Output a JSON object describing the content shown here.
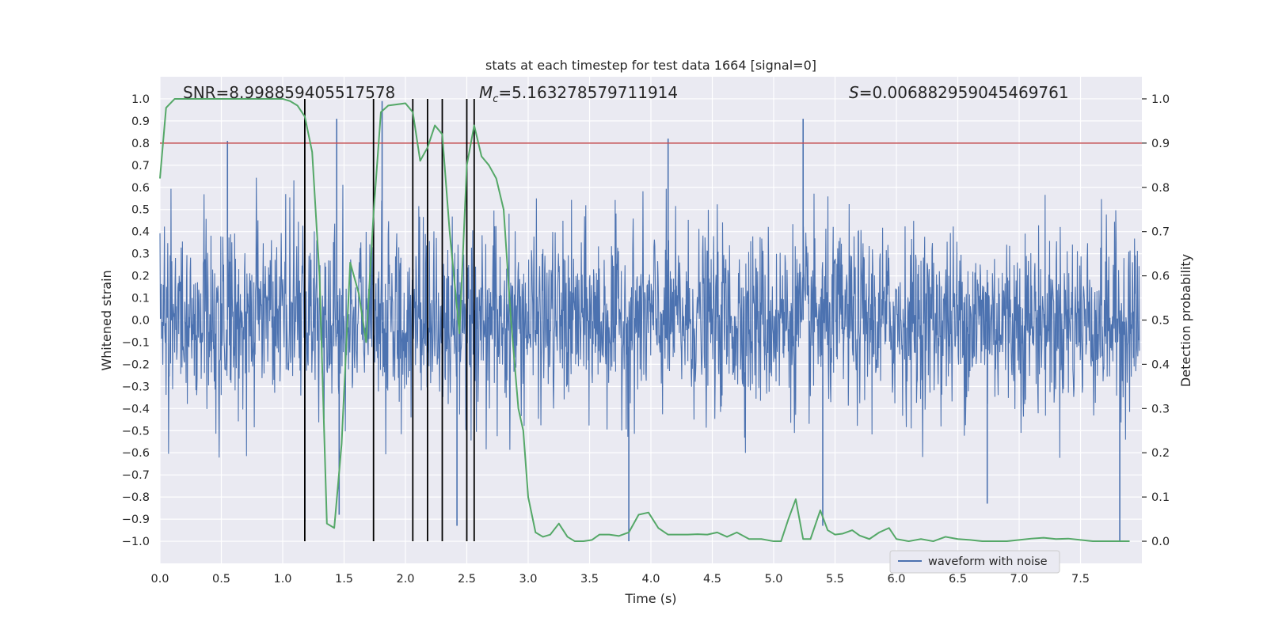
{
  "chart_data": {
    "type": "line",
    "title": "stats at each timestep for test data 1664 [signal=0]",
    "xlabel": "Time (s)",
    "ylabel_left": "Whitened strain",
    "ylabel_right": "Detection probability",
    "xlim": [
      0.0,
      8.0
    ],
    "ylim_left": [
      -1.1,
      1.1
    ],
    "ylim_right": [
      -0.05,
      1.05
    ],
    "grid": true,
    "x_ticks": [
      "0.0",
      "0.5",
      "1.0",
      "1.5",
      "2.0",
      "2.5",
      "3.0",
      "3.5",
      "4.0",
      "4.5",
      "5.0",
      "5.5",
      "6.0",
      "6.5",
      "7.0",
      "7.5"
    ],
    "y_left_ticks": [
      "1.0",
      "0.9",
      "0.8",
      "0.7",
      "0.6",
      "0.5",
      "0.4",
      "0.3",
      "0.2",
      "0.1",
      "0.0",
      "−0.1",
      "−0.2",
      "−0.3",
      "−0.4",
      "−0.5",
      "−0.6",
      "−0.7",
      "−0.8",
      "−0.9",
      "−1.0"
    ],
    "y_right_ticks": [
      "1.0",
      "0.9",
      "0.8",
      "0.7",
      "0.6",
      "0.5",
      "0.4",
      "0.3",
      "0.2",
      "0.1",
      "0.0"
    ],
    "annotations": {
      "snr": "SNR=8.998859405517578",
      "mc_symbol": "M",
      "mc_sub": "c",
      "mc_value": "=5.163278579711914",
      "s_symbol": "S",
      "s_value": "=0.006882959045469761"
    },
    "threshold": {
      "value": 0.8,
      "axis": "left",
      "color": "#c44e52"
    },
    "vertical_lines_x": [
      1.18,
      1.74,
      2.06,
      2.18,
      2.3,
      2.5,
      2.56
    ],
    "vertical_lines_range_left": [
      -1.0,
      1.0
    ],
    "waveform": {
      "name": "waveform with noise",
      "color": "#4c72b0",
      "typical_amplitude": 0.6,
      "tall_spikes": [
        {
          "x": 0.55,
          "y": 0.81
        },
        {
          "x": 1.18,
          "y": -0.91
        },
        {
          "x": 1.44,
          "y": 0.91
        },
        {
          "x": 1.46,
          "y": -0.88
        },
        {
          "x": 1.81,
          "y": 0.99
        },
        {
          "x": 2.42,
          "y": -0.93
        },
        {
          "x": 3.82,
          "y": -1.0
        },
        {
          "x": 4.14,
          "y": 0.82
        },
        {
          "x": 5.24,
          "y": 0.91
        },
        {
          "x": 5.4,
          "y": -0.93
        },
        {
          "x": 6.74,
          "y": -0.83
        },
        {
          "x": 7.82,
          "y": -1.0
        }
      ]
    },
    "series": [
      {
        "name": "detection probability",
        "axis": "right",
        "color": "#55a868",
        "x": [
          0.0,
          0.05,
          0.12,
          0.2,
          0.3,
          0.5,
          0.7,
          0.9,
          1.0,
          1.06,
          1.12,
          1.18,
          1.24,
          1.3,
          1.36,
          1.42,
          1.48,
          1.55,
          1.62,
          1.68,
          1.74,
          1.8,
          1.86,
          2.0,
          2.06,
          2.12,
          2.18,
          2.24,
          2.3,
          2.36,
          2.44,
          2.5,
          2.56,
          2.62,
          2.68,
          2.74,
          2.8,
          2.86,
          2.92,
          2.96,
          3.0,
          3.06,
          3.12,
          3.18,
          3.25,
          3.32,
          3.38,
          3.45,
          3.52,
          3.58,
          3.66,
          3.74,
          3.82,
          3.9,
          3.98,
          4.06,
          4.14,
          4.22,
          4.3,
          4.38,
          4.46,
          4.54,
          4.62,
          4.7,
          4.8,
          4.9,
          5.0,
          5.06,
          5.12,
          5.18,
          5.24,
          5.3,
          5.38,
          5.44,
          5.5,
          5.56,
          5.64,
          5.7,
          5.78,
          5.86,
          5.94,
          6.0,
          6.1,
          6.2,
          6.3,
          6.4,
          6.5,
          6.6,
          6.7,
          6.8,
          6.9,
          7.0,
          7.1,
          7.2,
          7.3,
          7.4,
          7.5,
          7.6,
          7.7,
          7.8,
          7.9
        ],
        "values": [
          0.82,
          0.98,
          1.0,
          1.0,
          1.0,
          1.0,
          1.0,
          1.0,
          1.0,
          0.995,
          0.985,
          0.96,
          0.88,
          0.6,
          0.04,
          0.03,
          0.22,
          0.63,
          0.56,
          0.45,
          0.74,
          0.97,
          0.985,
          0.99,
          0.97,
          0.86,
          0.89,
          0.94,
          0.92,
          0.7,
          0.47,
          0.85,
          0.94,
          0.87,
          0.85,
          0.82,
          0.75,
          0.5,
          0.3,
          0.25,
          0.1,
          0.02,
          0.01,
          0.015,
          0.04,
          0.01,
          0.0,
          0.0,
          0.003,
          0.015,
          0.015,
          0.012,
          0.02,
          0.06,
          0.065,
          0.03,
          0.015,
          0.015,
          0.015,
          0.016,
          0.015,
          0.02,
          0.01,
          0.02,
          0.005,
          0.005,
          0.0,
          0.0,
          0.05,
          0.095,
          0.005,
          0.005,
          0.07,
          0.025,
          0.015,
          0.017,
          0.025,
          0.013,
          0.005,
          0.02,
          0.03,
          0.005,
          0.0,
          0.005,
          0.0,
          0.01,
          0.005,
          0.003,
          0.0,
          0.0,
          0.0,
          0.003,
          0.006,
          0.008,
          0.005,
          0.006,
          0.003,
          0.0,
          0.0,
          0.0,
          0.0
        ]
      }
    ],
    "legend": {
      "position": "lower-right",
      "entries": [
        "waveform with noise"
      ]
    }
  }
}
